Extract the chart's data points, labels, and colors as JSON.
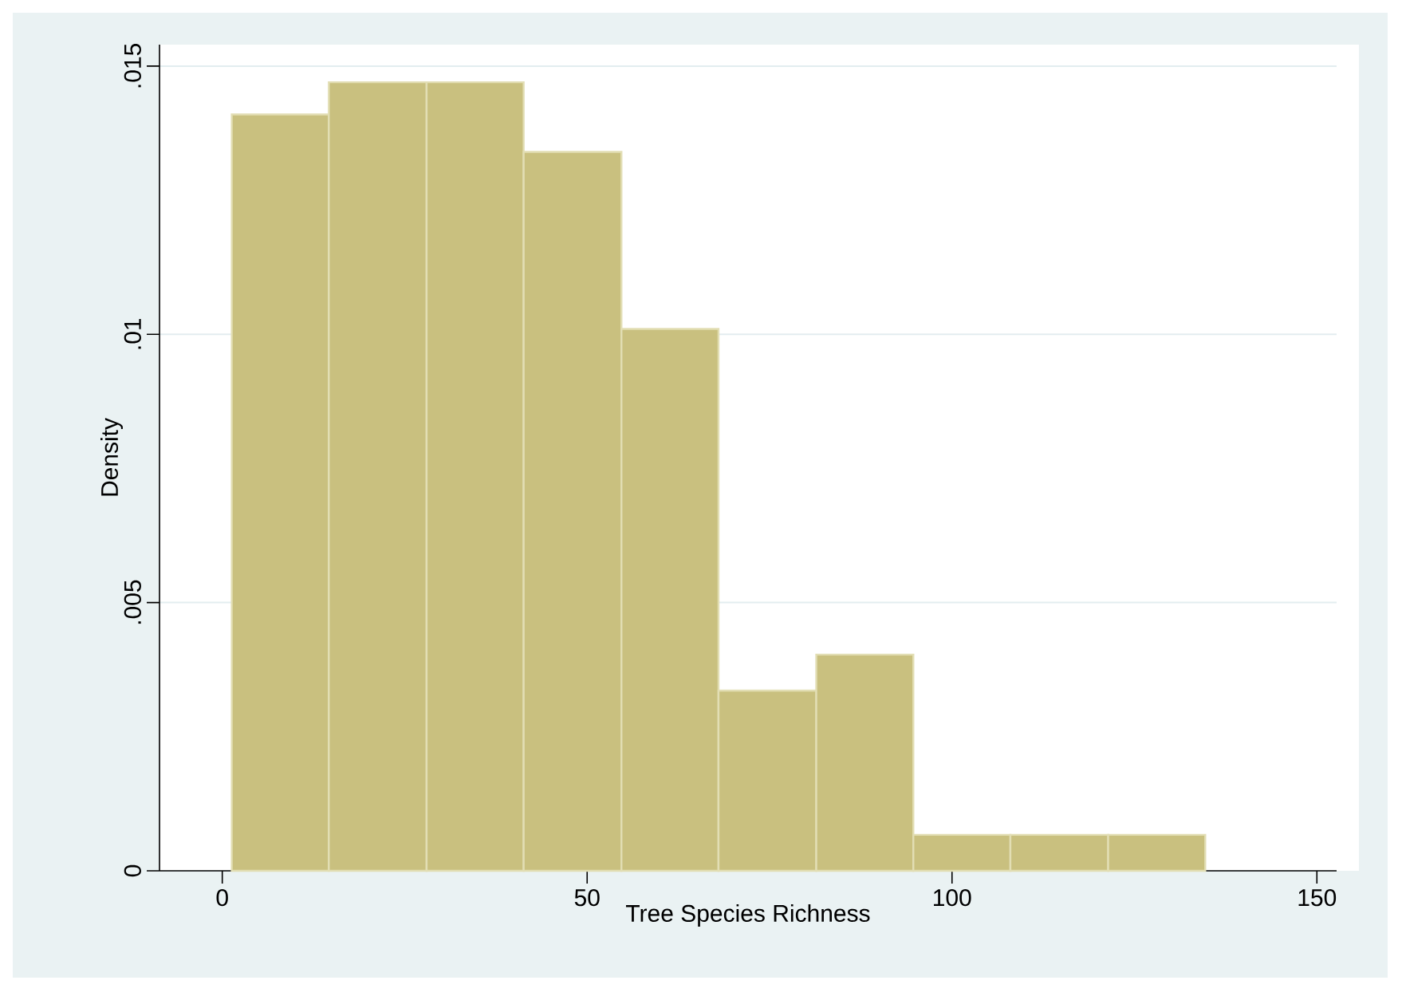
{
  "chart_data": {
    "type": "histogram",
    "xlabel": "Tree Species Richness",
    "ylabel": "Density",
    "bins": [
      1.3,
      14.6,
      28,
      41.3,
      54.7,
      68,
      81.4,
      94.7,
      108,
      121.4,
      134.7
    ],
    "values": [
      0.0141,
      0.0147,
      0.0147,
      0.0134,
      0.0101,
      0.00336,
      0.00403,
      0.00067,
      0.00067,
      0.00067
    ],
    "color": "#c9c07f",
    "xlim": [
      -8.6,
      152.7
    ],
    "ylim": [
      0,
      0.0154
    ],
    "xticks": [
      0,
      50,
      100,
      150
    ],
    "yticks": [
      0,
      {
        "value": 0.005,
        "label": ".005"
      },
      {
        "value": 0.01,
        "label": ".01"
      },
      {
        "value": 0.015,
        "label": ".015"
      }
    ],
    "grid": "y"
  }
}
